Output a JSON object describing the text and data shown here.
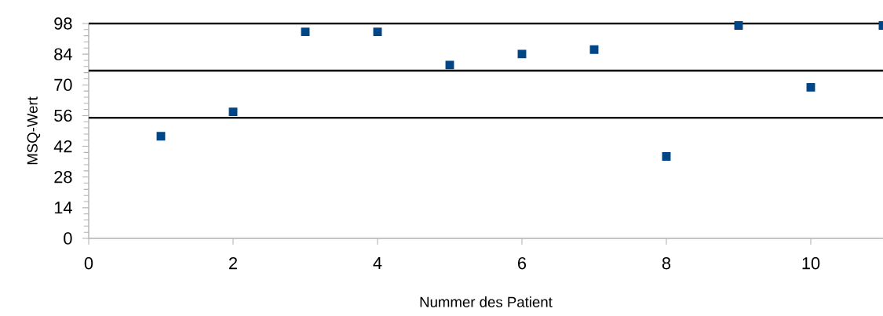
{
  "chart_data": {
    "type": "scatter",
    "xlabel": "Nummer des Patient",
    "ylabel": "MSQ-Wert",
    "x": [
      1,
      2,
      3,
      4,
      5,
      6,
      7,
      8,
      9,
      10,
      11
    ],
    "values": [
      46.6,
      57.7,
      94.2,
      94.2,
      79.1,
      84.1,
      86.1,
      37.4,
      97.1,
      68.9,
      97.1
    ],
    "color": "#004586",
    "marker": "square",
    "xlim": [
      0,
      11
    ],
    "xticks": [
      0,
      2,
      4,
      6,
      8,
      10
    ],
    "ylim": [
      0,
      98
    ],
    "yticks": [
      0,
      14,
      28,
      42,
      56,
      70,
      84,
      98
    ],
    "ref_lines": [
      {
        "axis": "y",
        "value": 98,
        "color": "#000000"
      },
      {
        "axis": "y",
        "value": 76.5,
        "color": "#000000"
      },
      {
        "axis": "y",
        "value": 55,
        "color": "#000000"
      }
    ],
    "grid": false
  }
}
